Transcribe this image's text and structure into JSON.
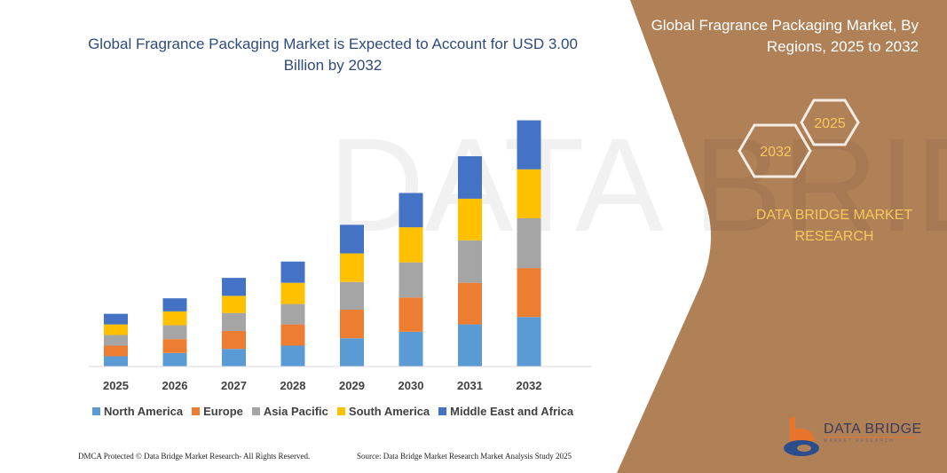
{
  "title": "Global Fragrance Packaging Market is Expected to Account for USD 3.00 Billion by 2032",
  "side_panel": {
    "title": "Global Fragrance Packaging Market, By Regions, 2025 to 2032",
    "hex_labels": [
      "2025",
      "2032"
    ],
    "brand": "DATA BRIDGE MARKET RESEARCH",
    "logo_text": "DATA BRIDGE",
    "logo_subtext": "MARKET RESEARCH",
    "color": "#b08057"
  },
  "footer": {
    "left": "DMCA Protected © Data Bridge Market Research-  All Rights Reserved.",
    "right": "Source: Data Bridge Market Research  Market Analysis Study 2025"
  },
  "chart_data": {
    "type": "bar",
    "stacked": true,
    "title": "Global Fragrance Packaging Market is Expected to Account for USD 3.00 Billion by 2032",
    "categories": [
      "2025",
      "2026",
      "2027",
      "2028",
      "2029",
      "2030",
      "2031",
      "2032"
    ],
    "series": [
      {
        "name": "North America",
        "color": "#5b9bd5",
        "values": [
          0.12,
          0.16,
          0.21,
          0.25,
          0.34,
          0.42,
          0.51,
          0.6
        ]
      },
      {
        "name": "Europe",
        "color": "#ed7d31",
        "values": [
          0.13,
          0.17,
          0.22,
          0.26,
          0.35,
          0.42,
          0.51,
          0.6
        ]
      },
      {
        "name": "Asia Pacific",
        "color": "#a5a5a5",
        "values": [
          0.13,
          0.17,
          0.22,
          0.25,
          0.34,
          0.43,
          0.52,
          0.61
        ]
      },
      {
        "name": "South America",
        "color": "#ffc000",
        "values": [
          0.13,
          0.17,
          0.21,
          0.26,
          0.35,
          0.43,
          0.51,
          0.6
        ]
      },
      {
        "name": "Middle East and Africa",
        "color": "#4472c4",
        "values": [
          0.13,
          0.16,
          0.22,
          0.26,
          0.35,
          0.42,
          0.52,
          0.6
        ]
      }
    ],
    "ylim": [
      0,
      3.0
    ],
    "y_axis_shown": false,
    "grid": false,
    "legend": "bottom"
  }
}
